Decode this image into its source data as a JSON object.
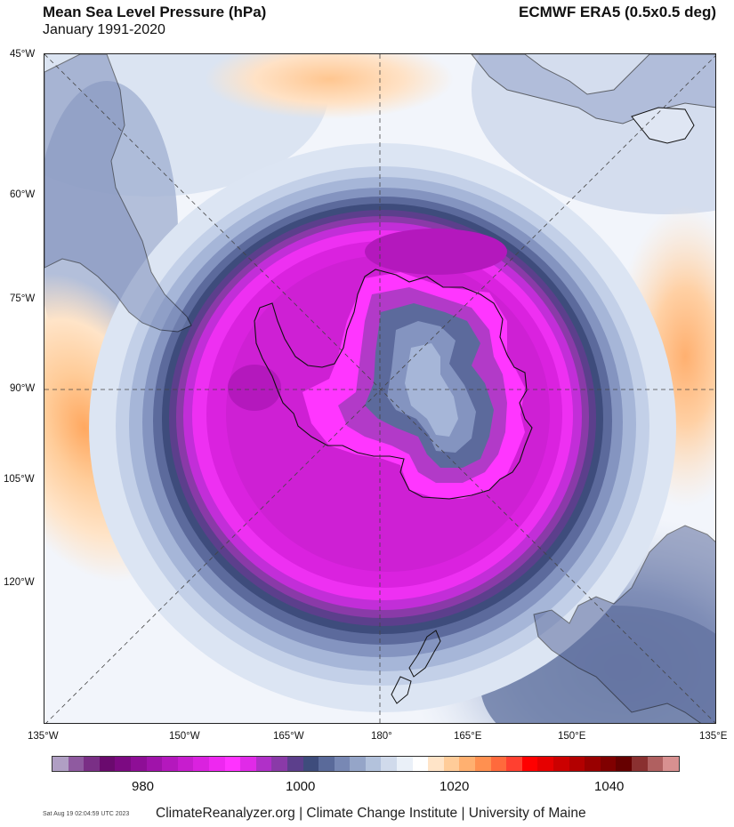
{
  "header": {
    "title": "Mean Sea Level Pressure (hPa)",
    "subtitle": "January 1991-2020",
    "source": "ECMWF ERA5 (0.5x0.5 deg)"
  },
  "map": {
    "projection": "south polar stereographic",
    "lat_labels": [
      "45°W",
      "60°W",
      "75°W",
      "90°W",
      "105°W",
      "120°W"
    ],
    "lon_labels": [
      "135°W",
      "150°W",
      "165°W",
      "180°",
      "165°E",
      "150°E",
      "135°E"
    ]
  },
  "colorbar": {
    "colors": [
      "#b09fc4",
      "#8f5aa0",
      "#7a2f86",
      "#6a0a6e",
      "#7c0a82",
      "#8e0e96",
      "#a013aa",
      "#b418bd",
      "#c71dce",
      "#da22df",
      "#ee28f0",
      "#ff33ff",
      "#e02ae8",
      "#b030c8",
      "#8a3aa8",
      "#5c3f8c",
      "#3e4c7c",
      "#5a6a9a",
      "#7888b4",
      "#95a5c8",
      "#b3c2dc",
      "#d0daeb",
      "#eaf0f8",
      "#ffffff",
      "#ffe4c8",
      "#ffcc99",
      "#ffb070",
      "#ff9050",
      "#ff6a3c",
      "#ff4030",
      "#ff0000",
      "#e60000",
      "#cc0000",
      "#b30000",
      "#990000",
      "#800000",
      "#660000",
      "#8a3030",
      "#b06060",
      "#d89090"
    ],
    "tick_labels": [
      "980",
      "1000",
      "1020",
      "1040"
    ]
  },
  "footer": {
    "timestamp": "Sat Aug 19 02:04:59 UTC 2023",
    "credit": "ClimateReanalyzer.org | Climate Change Institute | University of Maine"
  }
}
